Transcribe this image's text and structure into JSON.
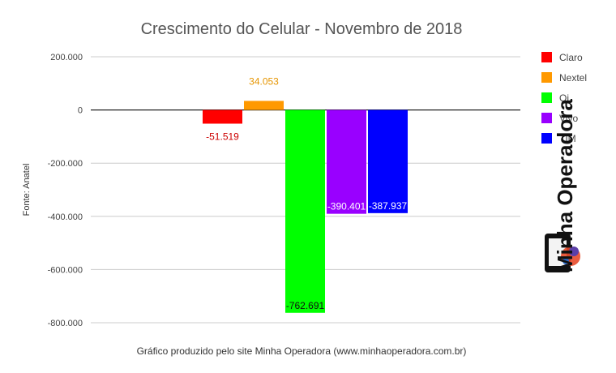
{
  "chart_data": {
    "type": "bar",
    "title": "Crescimento do Celular - Novembro de 2018",
    "ylabel": "Fonte: Anatel",
    "xlabel": "Gráfico produzido pelo site Minha Operadora (www.minhaoperadora.com.br)",
    "ylim": [
      -800000,
      200000
    ],
    "yticks": [
      200000,
      0,
      -200000,
      -400000,
      -600000,
      -800000
    ],
    "ytick_labels": [
      "200.000",
      "0",
      "-200.000",
      "-400.000",
      "-600.000",
      "-800.000"
    ],
    "grid": true,
    "legend_position": "right",
    "series": [
      {
        "name": "Claro",
        "value": -51519,
        "label": "-51.519",
        "color": "#ff0000",
        "label_color": "#cc0000"
      },
      {
        "name": "Nextel",
        "value": 34053,
        "label": "34.053",
        "color": "#ff9900",
        "label_color": "#e69500"
      },
      {
        "name": "Oi",
        "value": -762691,
        "label": "-762.691",
        "color": "#00ff00",
        "label_color": "#111111"
      },
      {
        "name": "Vivo",
        "value": -390401,
        "label": "-390.401",
        "color": "#9900ff",
        "label_color": "#ffffff"
      },
      {
        "name": "TIM",
        "value": -387937,
        "label": "-387.937",
        "color": "#0000ff",
        "label_color": "#ffffff"
      }
    ]
  },
  "logo": {
    "text": "Minha Operadora",
    "icon": "phone-logo-icon"
  }
}
